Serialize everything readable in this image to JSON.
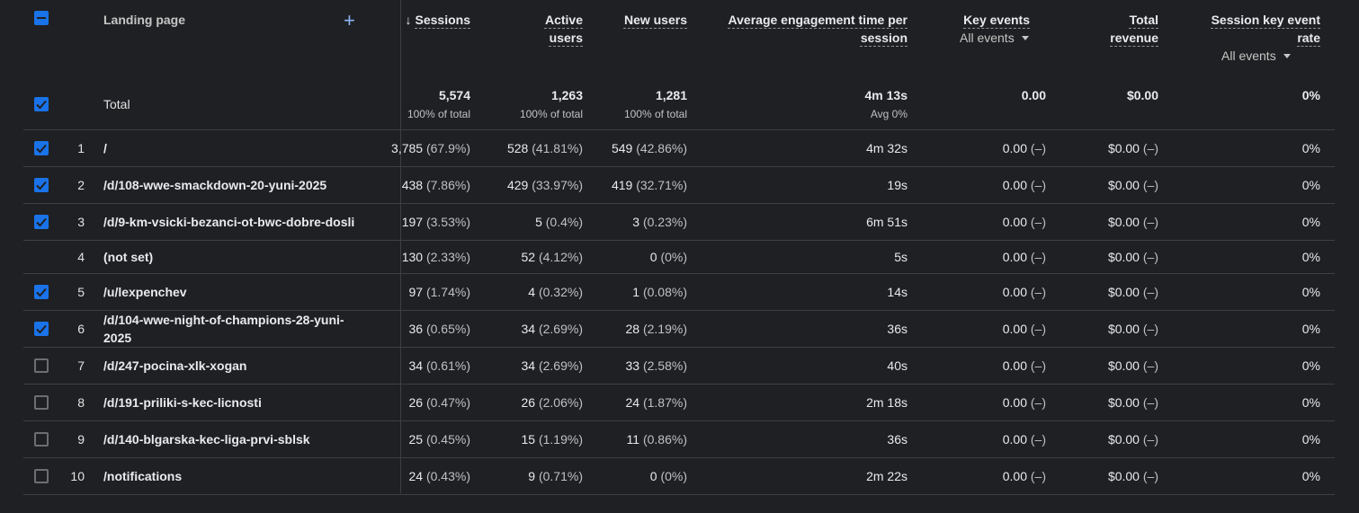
{
  "header": {
    "landing_page": "Landing page",
    "add": "+",
    "sort_arrow": "↓",
    "sessions": "Sessions",
    "active_users": [
      "Active",
      "users"
    ],
    "new_users": "New users",
    "avg_engagement": [
      "Average engagement time per",
      "session"
    ],
    "key_events": "Key events",
    "key_events_filter": "All events",
    "total_revenue": [
      "Total",
      "revenue"
    ],
    "session_key_event_rate": [
      "Session key event",
      "rate"
    ],
    "session_key_event_filter": "All events"
  },
  "total": {
    "label": "Total",
    "sessions": "5,574",
    "sessions_sub": "100% of total",
    "active_users": "1,263",
    "active_users_sub": "100% of total",
    "new_users": "1,281",
    "new_users_sub": "100% of total",
    "avg_engagement": "4m 13s",
    "avg_engagement_sub": "Avg 0%",
    "key_events": "0.00",
    "revenue": "$0.00",
    "rate": "0%"
  },
  "rows": [
    {
      "checked": true,
      "idx": "1",
      "page": "/",
      "sessions": "3,785",
      "sessions_pct": "(67.9%)",
      "active": "528",
      "active_pct": "(41.81%)",
      "new": "549",
      "new_pct": "(42.86%)",
      "eng": "4m 32s",
      "ke": "0.00",
      "ke_pct": "(–)",
      "rev": "$0.00",
      "rev_pct": "(–)",
      "rate": "0%"
    },
    {
      "checked": true,
      "idx": "2",
      "page": "/d/108-wwe-smackdown-20-yuni-2025",
      "sessions": "438",
      "sessions_pct": "(7.86%)",
      "active": "429",
      "active_pct": "(33.97%)",
      "new": "419",
      "new_pct": "(32.71%)",
      "eng": "19s",
      "ke": "0.00",
      "ke_pct": "(–)",
      "rev": "$0.00",
      "rev_pct": "(–)",
      "rate": "0%"
    },
    {
      "checked": true,
      "idx": "3",
      "page": "/d/9-km-vsicki-bezanci-ot-bwc-dobre-dosli",
      "sessions": "197",
      "sessions_pct": "(3.53%)",
      "active": "5",
      "active_pct": "(0.4%)",
      "new": "3",
      "new_pct": "(0.23%)",
      "eng": "6m 51s",
      "ke": "0.00",
      "ke_pct": "(–)",
      "rev": "$0.00",
      "rev_pct": "(–)",
      "rate": "0%"
    },
    {
      "checked": null,
      "idx": "4",
      "page": "(not set)",
      "sessions": "130",
      "sessions_pct": "(2.33%)",
      "active": "52",
      "active_pct": "(4.12%)",
      "new": "0",
      "new_pct": "(0%)",
      "eng": "5s",
      "ke": "0.00",
      "ke_pct": "(–)",
      "rev": "$0.00",
      "rev_pct": "(–)",
      "rate": "0%"
    },
    {
      "checked": true,
      "idx": "5",
      "page": "/u/lexpenchev",
      "sessions": "97",
      "sessions_pct": "(1.74%)",
      "active": "4",
      "active_pct": "(0.32%)",
      "new": "1",
      "new_pct": "(0.08%)",
      "eng": "14s",
      "ke": "0.00",
      "ke_pct": "(–)",
      "rev": "$0.00",
      "rev_pct": "(–)",
      "rate": "0%"
    },
    {
      "checked": true,
      "idx": "6",
      "page": "/d/104-wwe-night-of-champions-28-yuni-2025",
      "sessions": "36",
      "sessions_pct": "(0.65%)",
      "active": "34",
      "active_pct": "(2.69%)",
      "new": "28",
      "new_pct": "(2.19%)",
      "eng": "36s",
      "ke": "0.00",
      "ke_pct": "(–)",
      "rev": "$0.00",
      "rev_pct": "(–)",
      "rate": "0%"
    },
    {
      "checked": false,
      "idx": "7",
      "page": "/d/247-pocina-xlk-xogan",
      "sessions": "34",
      "sessions_pct": "(0.61%)",
      "active": "34",
      "active_pct": "(2.69%)",
      "new": "33",
      "new_pct": "(2.58%)",
      "eng": "40s",
      "ke": "0.00",
      "ke_pct": "(–)",
      "rev": "$0.00",
      "rev_pct": "(–)",
      "rate": "0%"
    },
    {
      "checked": false,
      "idx": "8",
      "page": "/d/191-priliki-s-kec-licnosti",
      "sessions": "26",
      "sessions_pct": "(0.47%)",
      "active": "26",
      "active_pct": "(2.06%)",
      "new": "24",
      "new_pct": "(1.87%)",
      "eng": "2m 18s",
      "ke": "0.00",
      "ke_pct": "(–)",
      "rev": "$0.00",
      "rev_pct": "(–)",
      "rate": "0%"
    },
    {
      "checked": false,
      "idx": "9",
      "page": "/d/140-blgarska-kec-liga-prvi-sblsk",
      "sessions": "25",
      "sessions_pct": "(0.45%)",
      "active": "15",
      "active_pct": "(1.19%)",
      "new": "11",
      "new_pct": "(0.86%)",
      "eng": "36s",
      "ke": "0.00",
      "ke_pct": "(–)",
      "rev": "$0.00",
      "rev_pct": "(–)",
      "rate": "0%"
    },
    {
      "checked": false,
      "idx": "10",
      "page": "/notifications",
      "sessions": "24",
      "sessions_pct": "(0.43%)",
      "active": "9",
      "active_pct": "(0.71%)",
      "new": "0",
      "new_pct": "(0%)",
      "eng": "2m 22s",
      "ke": "0.00",
      "ke_pct": "(–)",
      "rev": "$0.00",
      "rev_pct": "(–)",
      "rate": "0%"
    }
  ]
}
